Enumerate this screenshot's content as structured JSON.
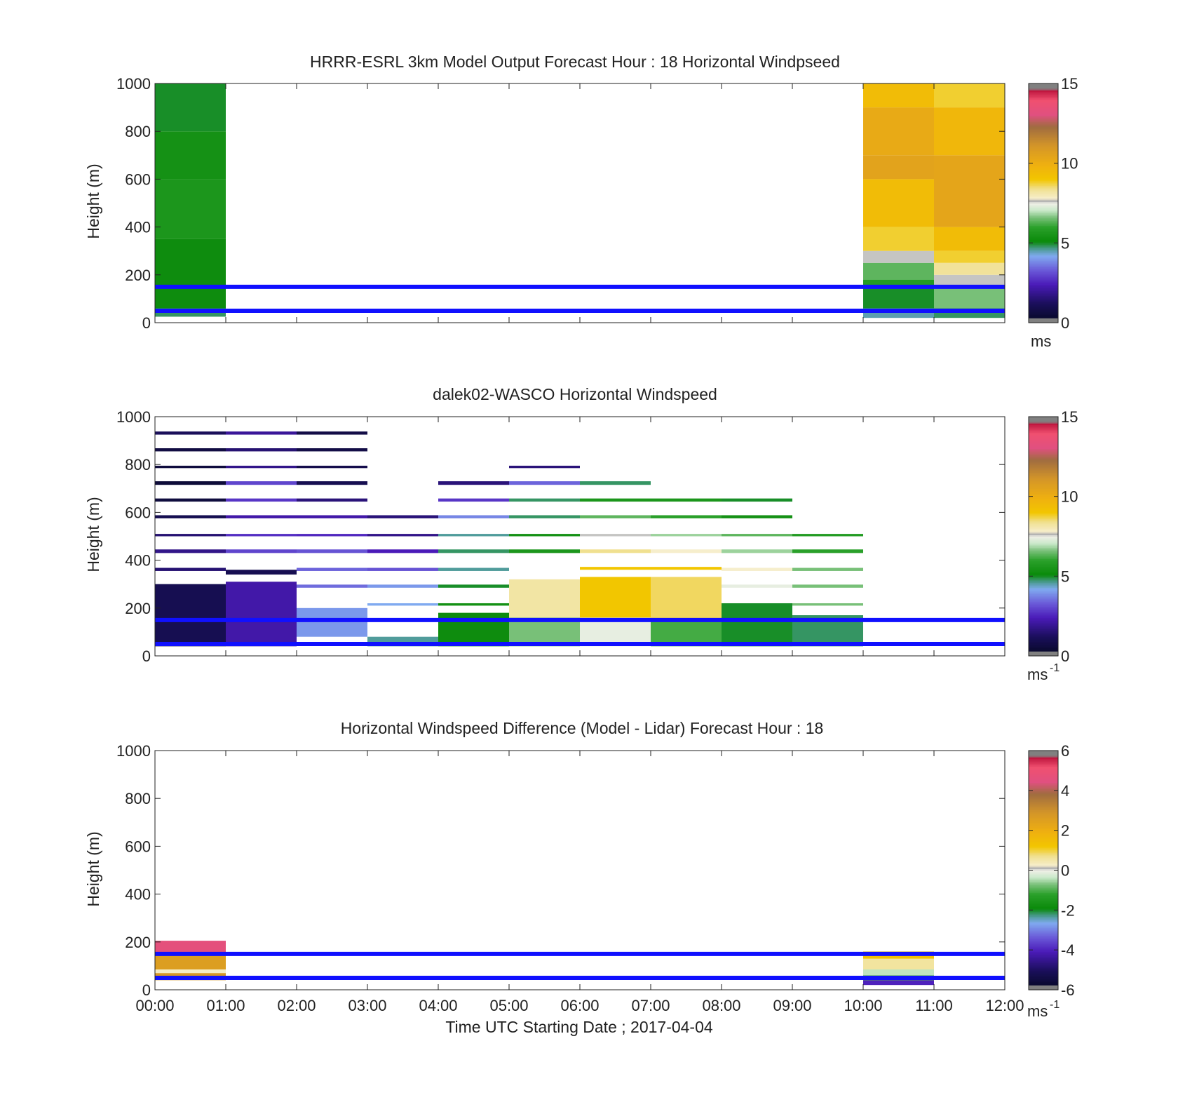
{
  "figure": {
    "xlabel": "Time UTC  Starting Date ; 2017-04-04"
  },
  "chart_data": [
    {
      "type": "heatmap",
      "title": "HRRR-ESRL 3km Model Output   Forecast Hour : 18 Horizontal Windpseed",
      "ylabel": "Height (m)",
      "xlim": [
        "00:00",
        "12:00"
      ],
      "ylim": [
        0,
        1000
      ],
      "x_ticks": [
        "00:00",
        "01:00",
        "02:00",
        "03:00",
        "04:00",
        "05:00",
        "06:00",
        "07:00",
        "08:00",
        "09:00",
        "10:00",
        "11:00",
        "12:00"
      ],
      "y_ticks": [
        "0",
        "200",
        "400",
        "600",
        "800",
        "1000"
      ],
      "hlines_m": [
        150,
        50
      ],
      "colorbar": {
        "min": 0,
        "max": 15,
        "ticks": [
          "0",
          "5",
          "10",
          "15"
        ],
        "unit": "ms",
        "unit_sup": ""
      },
      "columns": [
        {
          "t0": 0,
          "t1": 1,
          "cells": [
            {
              "z0": 25,
              "z1": 60,
              "v": 4.8
            },
            {
              "z0": 60,
              "z1": 350,
              "v": 5.2
            },
            {
              "z0": 350,
              "z1": 600,
              "v": 5.6
            },
            {
              "z0": 600,
              "z1": 800,
              "v": 5.4
            },
            {
              "z0": 800,
              "z1": 1000,
              "v": 5.0
            }
          ]
        },
        {
          "t0": 10,
          "t1": 11,
          "cells": [
            {
              "z0": 20,
              "z1": 60,
              "v": 4.5
            },
            {
              "z0": 60,
              "z1": 150,
              "v": 5.0
            },
            {
              "z0": 150,
              "z1": 180,
              "v": 5.8
            },
            {
              "z0": 180,
              "z1": 250,
              "v": 6.4
            },
            {
              "z0": 250,
              "z1": 300,
              "v": 7.6
            },
            {
              "z0": 300,
              "z1": 400,
              "v": 8.8
            },
            {
              "z0": 400,
              "z1": 600,
              "v": 9.4
            },
            {
              "z0": 600,
              "z1": 700,
              "v": 10.5
            },
            {
              "z0": 700,
              "z1": 900,
              "v": 10.2
            },
            {
              "z0": 900,
              "z1": 1000,
              "v": 9.4
            }
          ]
        },
        {
          "t0": 11,
          "t1": 12,
          "cells": [
            {
              "z0": 20,
              "z1": 60,
              "v": 4.8
            },
            {
              "z0": 60,
              "z1": 150,
              "v": 6.6
            },
            {
              "z0": 150,
              "z1": 200,
              "v": 7.6
            },
            {
              "z0": 200,
              "z1": 250,
              "v": 8.3
            },
            {
              "z0": 250,
              "z1": 300,
              "v": 8.8
            },
            {
              "z0": 300,
              "z1": 400,
              "v": 9.4
            },
            {
              "z0": 400,
              "z1": 700,
              "v": 10.4
            },
            {
              "z0": 700,
              "z1": 900,
              "v": 9.6
            },
            {
              "z0": 900,
              "z1": 1000,
              "v": 8.8
            }
          ]
        }
      ]
    },
    {
      "type": "heatmap",
      "title": "dalek02-WASCO  Horizontal Windspeed",
      "ylabel": "Height (m)",
      "xlim": [
        "00:00",
        "12:00"
      ],
      "ylim": [
        0,
        1000
      ],
      "x_ticks": [
        "00:00",
        "01:00",
        "02:00",
        "03:00",
        "04:00",
        "05:00",
        "06:00",
        "07:00",
        "08:00",
        "09:00",
        "10:00",
        "11:00",
        "12:00"
      ],
      "y_ticks": [
        "0",
        "200",
        "400",
        "600",
        "800",
        "1000"
      ],
      "hlines_m": [
        150,
        50
      ],
      "colorbar": {
        "min": 0,
        "max": 15,
        "ticks": [
          "0",
          "5",
          "10",
          "15"
        ],
        "unit": "ms",
        "unit_sup": "-1"
      },
      "columns": [
        {
          "t0": 0,
          "t1": 1,
          "cells": [
            {
              "z0": 40,
              "z1": 300,
              "v": 1.0
            },
            {
              "z0": 355,
              "z1": 368,
              "v": 1.5
            },
            {
              "z0": 430,
              "z1": 445,
              "v": 1.8
            },
            {
              "z0": 500,
              "z1": 510,
              "v": 1.5
            },
            {
              "z0": 575,
              "z1": 588,
              "v": 1.0
            },
            {
              "z0": 645,
              "z1": 658,
              "v": 0.6
            },
            {
              "z0": 715,
              "z1": 730,
              "v": 0.5
            },
            {
              "z0": 785,
              "z1": 795,
              "v": 0.6
            },
            {
              "z0": 855,
              "z1": 868,
              "v": 0.7
            },
            {
              "z0": 925,
              "z1": 938,
              "v": 1.2
            }
          ]
        },
        {
          "t0": 1,
          "t1": 2,
          "cells": [
            {
              "z0": 40,
              "z1": 310,
              "v": 2.2
            },
            {
              "z0": 340,
              "z1": 360,
              "v": 1.0
            },
            {
              "z0": 430,
              "z1": 445,
              "v": 3.0
            },
            {
              "z0": 500,
              "z1": 510,
              "v": 2.7
            },
            {
              "z0": 575,
              "z1": 588,
              "v": 2.2
            },
            {
              "z0": 645,
              "z1": 658,
              "v": 2.8
            },
            {
              "z0": 715,
              "z1": 730,
              "v": 3.0
            },
            {
              "z0": 785,
              "z1": 795,
              "v": 1.8
            },
            {
              "z0": 855,
              "z1": 868,
              "v": 1.5
            },
            {
              "z0": 925,
              "z1": 938,
              "v": 2.0
            }
          ]
        },
        {
          "t0": 2,
          "t1": 3,
          "cells": [
            {
              "z0": 80,
              "z1": 200,
              "v": 4.0
            },
            {
              "z0": 285,
              "z1": 298,
              "v": 3.5
            },
            {
              "z0": 355,
              "z1": 368,
              "v": 3.4
            },
            {
              "z0": 430,
              "z1": 445,
              "v": 3.2
            },
            {
              "z0": 500,
              "z1": 510,
              "v": 2.6
            },
            {
              "z0": 575,
              "z1": 588,
              "v": 2.2
            },
            {
              "z0": 645,
              "z1": 658,
              "v": 1.6
            },
            {
              "z0": 715,
              "z1": 730,
              "v": 1.0
            },
            {
              "z0": 785,
              "z1": 795,
              "v": 0.9
            },
            {
              "z0": 855,
              "z1": 868,
              "v": 0.8
            },
            {
              "z0": 925,
              "z1": 938,
              "v": 0.8
            }
          ]
        },
        {
          "t0": 3,
          "t1": 4,
          "cells": [
            {
              "z0": 40,
              "z1": 80,
              "v": 4.6
            },
            {
              "z0": 210,
              "z1": 220,
              "v": 4.2
            },
            {
              "z0": 285,
              "z1": 298,
              "v": 4.0
            },
            {
              "z0": 355,
              "z1": 368,
              "v": 3.2
            },
            {
              "z0": 430,
              "z1": 445,
              "v": 2.4
            },
            {
              "z0": 500,
              "z1": 510,
              "v": 1.8
            },
            {
              "z0": 575,
              "z1": 588,
              "v": 1.6
            }
          ]
        },
        {
          "t0": 4,
          "t1": 5,
          "cells": [
            {
              "z0": 40,
              "z1": 180,
              "v": 5.2
            },
            {
              "z0": 210,
              "z1": 220,
              "v": 5.4
            },
            {
              "z0": 285,
              "z1": 298,
              "v": 5.0
            },
            {
              "z0": 355,
              "z1": 368,
              "v": 4.6
            },
            {
              "z0": 430,
              "z1": 445,
              "v": 4.8
            },
            {
              "z0": 500,
              "z1": 510,
              "v": 4.6
            },
            {
              "z0": 575,
              "z1": 588,
              "v": 3.8
            },
            {
              "z0": 645,
              "z1": 658,
              "v": 2.8
            },
            {
              "z0": 715,
              "z1": 730,
              "v": 1.6
            }
          ]
        },
        {
          "t0": 5,
          "t1": 6,
          "cells": [
            {
              "z0": 40,
              "z1": 160,
              "v": 6.6
            },
            {
              "z0": 160,
              "z1": 320,
              "v": 8.2
            },
            {
              "z0": 430,
              "z1": 445,
              "v": 5.6
            },
            {
              "z0": 500,
              "z1": 510,
              "v": 5.4
            },
            {
              "z0": 575,
              "z1": 588,
              "v": 4.8
            },
            {
              "z0": 645,
              "z1": 658,
              "v": 4.8
            },
            {
              "z0": 715,
              "z1": 730,
              "v": 3.4
            },
            {
              "z0": 785,
              "z1": 795,
              "v": 1.6
            }
          ]
        },
        {
          "t0": 6,
          "t1": 7,
          "cells": [
            {
              "z0": 40,
              "z1": 160,
              "v": 7.4
            },
            {
              "z0": 160,
              "z1": 330,
              "v": 9.0
            },
            {
              "z0": 360,
              "z1": 372,
              "v": 9.0
            },
            {
              "z0": 430,
              "z1": 445,
              "v": 8.4
            },
            {
              "z0": 500,
              "z1": 510,
              "v": 7.6
            },
            {
              "z0": 575,
              "z1": 588,
              "v": 6.4
            },
            {
              "z0": 645,
              "z1": 658,
              "v": 5.6
            },
            {
              "z0": 715,
              "z1": 730,
              "v": 4.8
            }
          ]
        },
        {
          "t0": 7,
          "t1": 8,
          "cells": [
            {
              "z0": 40,
              "z1": 150,
              "v": 6.2
            },
            {
              "z0": 150,
              "z1": 330,
              "v": 8.6
            },
            {
              "z0": 360,
              "z1": 372,
              "v": 9.0
            },
            {
              "z0": 430,
              "z1": 445,
              "v": 7.8
            },
            {
              "z0": 500,
              "z1": 510,
              "v": 6.8
            },
            {
              "z0": 575,
              "z1": 588,
              "v": 6.0
            },
            {
              "z0": 645,
              "z1": 658,
              "v": 5.6
            }
          ]
        },
        {
          "t0": 8,
          "t1": 9,
          "cells": [
            {
              "z0": 40,
              "z1": 220,
              "v": 5.0
            },
            {
              "z0": 285,
              "z1": 298,
              "v": 7.4
            },
            {
              "z0": 355,
              "z1": 368,
              "v": 7.8
            },
            {
              "z0": 430,
              "z1": 445,
              "v": 6.8
            },
            {
              "z0": 500,
              "z1": 510,
              "v": 6.4
            },
            {
              "z0": 575,
              "z1": 588,
              "v": 5.4
            },
            {
              "z0": 645,
              "z1": 658,
              "v": 5.0
            }
          ]
        },
        {
          "t0": 9,
          "t1": 10,
          "cells": [
            {
              "z0": 40,
              "z1": 170,
              "v": 4.8
            },
            {
              "z0": 210,
              "z1": 220,
              "v": 6.6
            },
            {
              "z0": 285,
              "z1": 298,
              "v": 6.6
            },
            {
              "z0": 355,
              "z1": 368,
              "v": 6.6
            },
            {
              "z0": 430,
              "z1": 445,
              "v": 6.0
            },
            {
              "z0": 500,
              "z1": 510,
              "v": 5.8
            }
          ]
        }
      ]
    },
    {
      "type": "heatmap",
      "title": "Horizontal Windspeed Difference (Model - Lidar) Forecast Hour : 18",
      "ylabel": "Height (m)",
      "xlim": [
        "00:00",
        "12:00"
      ],
      "ylim": [
        0,
        1000
      ],
      "x_ticks": [
        "00:00",
        "01:00",
        "02:00",
        "03:00",
        "04:00",
        "05:00",
        "06:00",
        "07:00",
        "08:00",
        "09:00",
        "10:00",
        "11:00",
        "12:00"
      ],
      "y_ticks": [
        "0",
        "200",
        "400",
        "600",
        "800",
        "1000"
      ],
      "hlines_m": [
        150,
        50
      ],
      "colorbar": {
        "min": -6,
        "max": 6,
        "ticks": [
          "-6",
          "-4",
          "-2",
          "0",
          "2",
          "4",
          "6"
        ],
        "unit": "ms",
        "unit_sup": "-1"
      },
      "columns": [
        {
          "t0": 0,
          "t1": 1,
          "cells": [
            {
              "z0": 40,
              "z1": 70,
              "v": 2.8
            },
            {
              "z0": 70,
              "z1": 85,
              "v": 0.3
            },
            {
              "z0": 85,
              "z1": 150,
              "v": 2.6
            },
            {
              "z0": 150,
              "z1": 205,
              "v": 4.6
            }
          ]
        },
        {
          "t0": 10,
          "t1": 11,
          "cells": [
            {
              "z0": 20,
              "z1": 40,
              "v": -4.0
            },
            {
              "z0": 40,
              "z1": 60,
              "v": -1.2
            },
            {
              "z0": 60,
              "z1": 85,
              "v": -0.4
            },
            {
              "z0": 85,
              "z1": 130,
              "v": 0.6
            },
            {
              "z0": 130,
              "z1": 160,
              "v": 1.4
            }
          ]
        }
      ]
    }
  ]
}
